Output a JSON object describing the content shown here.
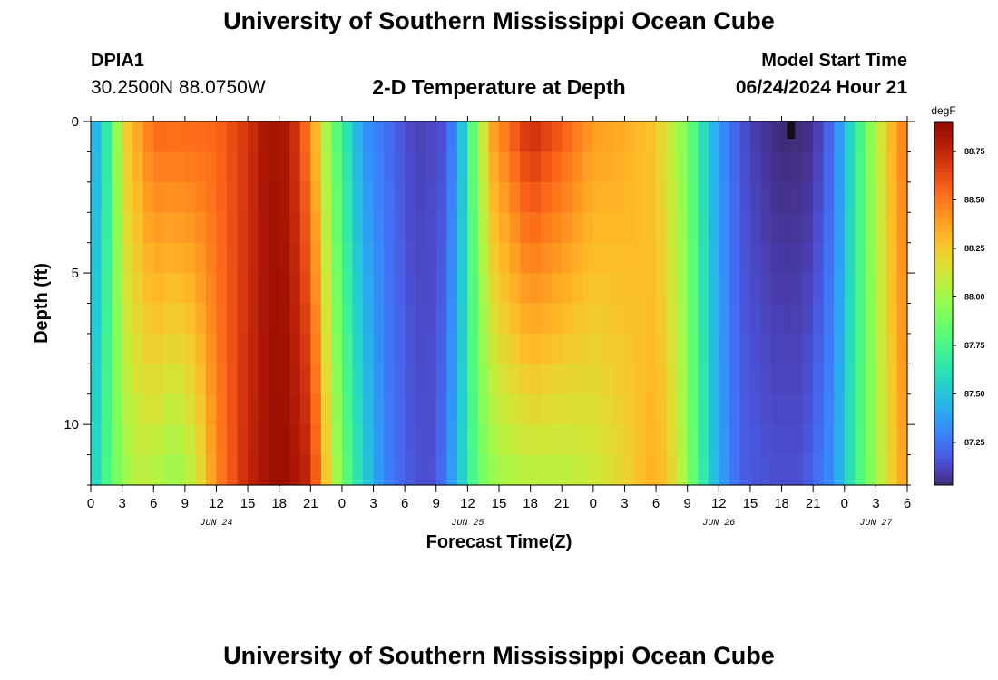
{
  "header": {
    "title": "University of Southern Mississippi Ocean Cube",
    "station_id": "DPIA1",
    "station_coords": "30.2500N  88.0750W",
    "plot_title": "2-D Temperature at Depth",
    "model_start_label": "Model Start Time",
    "model_start_value": "06/24/2024 Hour 21"
  },
  "footer": {
    "title": "University of Southern Mississippi Ocean Cube"
  },
  "chart_data": {
    "type": "heatmap",
    "xlabel": "Forecast Time(Z)",
    "ylabel": "Depth (ft)",
    "x_start_hour": 0,
    "x_end_hour": 78,
    "x_tick_labels": [
      "0",
      "3",
      "6",
      "9",
      "12",
      "15",
      "18",
      "21",
      "0",
      "3",
      "6",
      "9",
      "12",
      "15",
      "18",
      "21",
      "0",
      "3",
      "6",
      "9",
      "12",
      "15",
      "18",
      "21",
      "0",
      "3",
      "6"
    ],
    "date_labels": [
      {
        "label": "JUN 24",
        "hour": 12
      },
      {
        "label": "JUN 25",
        "hour": 36
      },
      {
        "label": "JUN 26",
        "hour": 60
      },
      {
        "label": "JUN 27",
        "hour": 75
      }
    ],
    "y_ticks": [
      0,
      5,
      10
    ],
    "ylim": [
      0,
      12
    ],
    "y_reversed": true,
    "colorbar": {
      "unit": "degF",
      "min": 87.03,
      "max": 88.9,
      "tick_values": [
        87.25,
        87.5,
        87.75,
        88.0,
        88.25,
        88.5,
        88.75
      ],
      "tick_labels": [
        "87.25",
        "87.50",
        "87.75",
        "88.00",
        "88.25",
        "88.50",
        "88.75"
      ],
      "colormap": "turbo"
    },
    "temperature_profile_surface": [
      {
        "hour": 0,
        "temp": 87.35
      },
      {
        "hour": 2,
        "temp": 87.75
      },
      {
        "hour": 3,
        "temp": 88.2
      },
      {
        "hour": 6,
        "temp": 88.55
      },
      {
        "hour": 9,
        "temp": 88.55
      },
      {
        "hour": 12,
        "temp": 88.55
      },
      {
        "hour": 15,
        "temp": 88.7
      },
      {
        "hour": 17,
        "temp": 88.85
      },
      {
        "hour": 19,
        "temp": 88.8
      },
      {
        "hour": 21,
        "temp": 88.45
      },
      {
        "hour": 22.5,
        "temp": 88.0
      },
      {
        "hour": 24,
        "temp": 87.7
      },
      {
        "hour": 26,
        "temp": 87.35
      },
      {
        "hour": 28,
        "temp": 87.25
      },
      {
        "hour": 31,
        "temp": 87.1
      },
      {
        "hour": 34,
        "temp": 87.15
      },
      {
        "hour": 35.5,
        "temp": 87.5
      },
      {
        "hour": 37,
        "temp": 88.0
      },
      {
        "hour": 38.5,
        "temp": 88.4
      },
      {
        "hour": 42,
        "temp": 88.75
      },
      {
        "hour": 45,
        "temp": 88.6
      },
      {
        "hour": 48,
        "temp": 88.4
      },
      {
        "hour": 51,
        "temp": 88.35
      },
      {
        "hour": 54,
        "temp": 88.25
      },
      {
        "hour": 57,
        "temp": 87.9
      },
      {
        "hour": 59,
        "temp": 87.5
      },
      {
        "hour": 61,
        "temp": 87.25
      },
      {
        "hour": 63,
        "temp": 87.1
      },
      {
        "hour": 66,
        "temp": 87.03
      },
      {
        "hour": 69,
        "temp": 87.05
      },
      {
        "hour": 71,
        "temp": 87.25
      },
      {
        "hour": 73,
        "temp": 87.65
      },
      {
        "hour": 75,
        "temp": 88.05
      },
      {
        "hour": 77,
        "temp": 88.4
      },
      {
        "hour": 78,
        "temp": 88.5
      }
    ],
    "temperature_profile_bottom": [
      {
        "hour": 0,
        "temp": 87.5
      },
      {
        "hour": 2,
        "temp": 87.85
      },
      {
        "hour": 4,
        "temp": 88.05
      },
      {
        "hour": 6,
        "temp": 88.05
      },
      {
        "hour": 8,
        "temp": 87.95
      },
      {
        "hour": 10,
        "temp": 88.1
      },
      {
        "hour": 12,
        "temp": 88.45
      },
      {
        "hour": 15,
        "temp": 88.75
      },
      {
        "hour": 18,
        "temp": 88.9
      },
      {
        "hour": 21,
        "temp": 88.75
      },
      {
        "hour": 23,
        "temp": 88.1
      },
      {
        "hour": 25,
        "temp": 87.7
      },
      {
        "hour": 28,
        "temp": 87.3
      },
      {
        "hour": 31,
        "temp": 87.15
      },
      {
        "hour": 33,
        "temp": 87.15
      },
      {
        "hour": 35,
        "temp": 87.45
      },
      {
        "hour": 37,
        "temp": 87.85
      },
      {
        "hour": 39,
        "temp": 88.0
      },
      {
        "hour": 42,
        "temp": 88.05
      },
      {
        "hour": 45,
        "temp": 88.05
      },
      {
        "hour": 48,
        "temp": 88.1
      },
      {
        "hour": 51,
        "temp": 88.2
      },
      {
        "hour": 54,
        "temp": 88.35
      },
      {
        "hour": 56,
        "temp": 88.15
      },
      {
        "hour": 58,
        "temp": 87.75
      },
      {
        "hour": 60,
        "temp": 87.4
      },
      {
        "hour": 62,
        "temp": 87.2
      },
      {
        "hour": 65,
        "temp": 87.15
      },
      {
        "hour": 68,
        "temp": 87.15
      },
      {
        "hour": 71,
        "temp": 87.35
      },
      {
        "hour": 73,
        "temp": 87.7
      },
      {
        "hour": 75,
        "temp": 88.0
      },
      {
        "hour": 77,
        "temp": 88.3
      },
      {
        "hour": 78,
        "temp": 88.4
      }
    ]
  }
}
